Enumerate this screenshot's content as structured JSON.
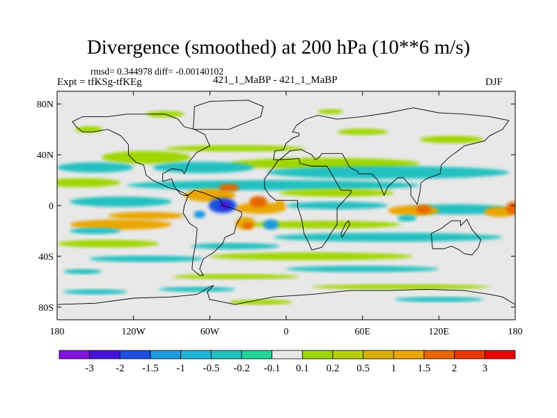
{
  "header": {
    "title": "Divergence (smoothed) at 200 hPa (10**6 m/s)",
    "stats": "rmsd= 0.344978 diff= -0.00140102",
    "experiment": "Expt = tfKSg-tfKEg",
    "run": "421_1_MaBP - 421_1_MaBP",
    "season": "DJF"
  },
  "map": {
    "projection": "cylindrical-equidistant",
    "lon_range": [
      -180,
      180
    ],
    "lat_range": [
      -90,
      90
    ],
    "background_color": "#e8e8e8",
    "lat_ticks": [
      {
        "value": 80,
        "label": "80N"
      },
      {
        "value": 40,
        "label": "40N"
      },
      {
        "value": 0,
        "label": "0"
      },
      {
        "value": -40,
        "label": "40S"
      },
      {
        "value": -80,
        "label": "80S"
      }
    ],
    "lon_ticks": [
      {
        "value": -180,
        "label": "180"
      },
      {
        "value": -120,
        "label": "120W"
      },
      {
        "value": -60,
        "label": "60W"
      },
      {
        "value": 0,
        "label": "0"
      },
      {
        "value": 60,
        "label": "60E"
      },
      {
        "value": 120,
        "label": "120E"
      },
      {
        "value": 180,
        "label": "180"
      }
    ],
    "bands": [
      {
        "lat": 72,
        "lon": -95,
        "w": 30,
        "h": 5,
        "color": "#9fd600"
      },
      {
        "lat": 74,
        "lon": 35,
        "w": 20,
        "h": 4,
        "color": "#9fd600"
      },
      {
        "lat": 60,
        "lon": -155,
        "w": 22,
        "h": 5,
        "color": "#9fd600"
      },
      {
        "lat": 58,
        "lon": 60,
        "w": 40,
        "h": 5,
        "color": "#9fd600"
      },
      {
        "lat": 52,
        "lon": 130,
        "w": 50,
        "h": 6,
        "color": "#9fd600"
      },
      {
        "lat": 45,
        "lon": -40,
        "w": 110,
        "h": 5,
        "color": "#9fd600"
      },
      {
        "lat": 38,
        "lon": -110,
        "w": 70,
        "h": 10,
        "color": "#9fd600"
      },
      {
        "lat": 33,
        "lon": 30,
        "w": 150,
        "h": 9,
        "color": "#9fd600"
      },
      {
        "lat": 30,
        "lon": -150,
        "w": 60,
        "h": 8,
        "color": "#22c0c0"
      },
      {
        "lat": 30,
        "lon": -65,
        "w": 80,
        "h": 9,
        "color": "#22c0c0"
      },
      {
        "lat": 26,
        "lon": 80,
        "w": 190,
        "h": 10,
        "color": "#22c0c0"
      },
      {
        "lat": 18,
        "lon": -160,
        "w": 60,
        "h": 7,
        "color": "#9fd600"
      },
      {
        "lat": 16,
        "lon": -10,
        "w": 230,
        "h": 8,
        "color": "#22c0c0"
      },
      {
        "lat": 8,
        "lon": -60,
        "w": 40,
        "h": 10,
        "color": "#eaa500"
      },
      {
        "lat": 10,
        "lon": 40,
        "w": 90,
        "h": 6,
        "color": "#9fd600"
      },
      {
        "lat": 3,
        "lon": -130,
        "w": 80,
        "h": 8,
        "color": "#22c0c0"
      },
      {
        "lat": 0,
        "lon": 40,
        "w": 80,
        "h": 6,
        "color": "#22c0c0"
      },
      {
        "lat": -3,
        "lon": 135,
        "w": 80,
        "h": 8,
        "color": "#22c0c0"
      },
      {
        "lat": -2,
        "lon": -20,
        "w": 40,
        "h": 9,
        "color": "#eaa500"
      },
      {
        "lat": -4,
        "lon": 100,
        "w": 40,
        "h": 8,
        "color": "#eaa500"
      },
      {
        "lat": -5,
        "lon": 168,
        "w": 25,
        "h": 8,
        "color": "#eaa500"
      },
      {
        "lat": -8,
        "lon": -110,
        "w": 60,
        "h": 6,
        "color": "#eaa500"
      },
      {
        "lat": -15,
        "lon": -130,
        "w": 80,
        "h": 8,
        "color": "#eaa500"
      },
      {
        "lat": -15,
        "lon": 30,
        "w": 120,
        "h": 6,
        "color": "#9fd600"
      },
      {
        "lat": -20,
        "lon": -150,
        "w": 40,
        "h": 5,
        "color": "#22c0c0"
      },
      {
        "lat": -25,
        "lon": 80,
        "w": 180,
        "h": 7,
        "color": "#22c0c0"
      },
      {
        "lat": -30,
        "lon": -140,
        "w": 80,
        "h": 6,
        "color": "#9fd600"
      },
      {
        "lat": -32,
        "lon": -40,
        "w": 70,
        "h": 5,
        "color": "#22c0c0"
      },
      {
        "lat": -40,
        "lon": 20,
        "w": 160,
        "h": 6,
        "color": "#9fd600"
      },
      {
        "lat": -42,
        "lon": -110,
        "w": 90,
        "h": 5,
        "color": "#22c0c0"
      },
      {
        "lat": -52,
        "lon": -160,
        "w": 30,
        "h": 4,
        "color": "#22c0c0"
      },
      {
        "lat": -50,
        "lon": 60,
        "w": 120,
        "h": 5,
        "color": "#22c0c0"
      },
      {
        "lat": -56,
        "lon": -40,
        "w": 100,
        "h": 4,
        "color": "#9fd600"
      },
      {
        "lat": -64,
        "lon": 90,
        "w": 140,
        "h": 4,
        "color": "#9fd600"
      },
      {
        "lat": -66,
        "lon": -70,
        "w": 60,
        "h": 4,
        "color": "#22c0c0"
      },
      {
        "lat": -68,
        "lon": -150,
        "w": 50,
        "h": 4,
        "color": "#22c0c0"
      },
      {
        "lat": -74,
        "lon": 120,
        "w": 70,
        "h": 4,
        "color": "#22c0c0"
      },
      {
        "lat": -76,
        "lon": -20,
        "w": 50,
        "h": 4,
        "color": "#9fd600"
      }
    ],
    "anomalies": [
      {
        "lat": 0,
        "lon": -50,
        "w": 22,
        "h": 12,
        "color": "#1d4fe0"
      },
      {
        "lat": 0,
        "lon": -48,
        "w": 9,
        "h": 6,
        "color": "#4412d8"
      },
      {
        "lat": 3,
        "lon": -22,
        "w": 14,
        "h": 9,
        "color": "#e86700"
      },
      {
        "lat": 1,
        "lon": -5,
        "w": 8,
        "h": 6,
        "color": "#eaa500"
      },
      {
        "lat": -14,
        "lon": -32,
        "w": 16,
        "h": 10,
        "color": "#eaa500"
      },
      {
        "lat": -16,
        "lon": -30,
        "w": 8,
        "h": 5,
        "color": "#e86700"
      },
      {
        "lat": -15,
        "lon": -12,
        "w": 12,
        "h": 8,
        "color": "#1d9ae0"
      },
      {
        "lat": 14,
        "lon": -45,
        "w": 16,
        "h": 6,
        "color": "#e86700"
      },
      {
        "lat": -7,
        "lon": -68,
        "w": 9,
        "h": 6,
        "color": "#1d9ae0"
      },
      {
        "lat": -3,
        "lon": 108,
        "w": 12,
        "h": 7,
        "color": "#e86700"
      },
      {
        "lat": -2,
        "lon": 178,
        "w": 10,
        "h": 10,
        "color": "#e86700"
      },
      {
        "lat": -10,
        "lon": 95,
        "w": 15,
        "h": 5,
        "color": "#22c0c0"
      }
    ],
    "coastlines": [
      [
        [
          -168,
          66
        ],
        [
          -160,
          70
        ],
        [
          -140,
          70
        ],
        [
          -125,
          72
        ],
        [
          -95,
          72
        ],
        [
          -85,
          68
        ],
        [
          -80,
          62
        ],
        [
          -72,
          60
        ],
        [
          -64,
          56
        ],
        [
          -60,
          47
        ],
        [
          -70,
          42
        ],
        [
          -76,
          35
        ],
        [
          -80,
          25
        ],
        [
          -82,
          28
        ],
        [
          -90,
          29
        ],
        [
          -97,
          25
        ],
        [
          -97,
          19
        ],
        [
          -90,
          21
        ],
        [
          -88,
          15
        ],
        [
          -83,
          9
        ],
        [
          -80,
          8
        ],
        [
          -77,
          8
        ],
        [
          -85,
          12
        ],
        [
          -92,
          14
        ],
        [
          -105,
          20
        ],
        [
          -110,
          24
        ],
        [
          -112,
          32
        ],
        [
          -118,
          34
        ],
        [
          -124,
          40
        ],
        [
          -124,
          48
        ],
        [
          -130,
          55
        ],
        [
          -140,
          60
        ],
        [
          -152,
          58
        ],
        [
          -160,
          58
        ],
        [
          -165,
          62
        ],
        [
          -168,
          66
        ]
      ],
      [
        [
          -77,
          8
        ],
        [
          -80,
          0
        ],
        [
          -81,
          -6
        ],
        [
          -76,
          -14
        ],
        [
          -70,
          -18
        ],
        [
          -71,
          -30
        ],
        [
          -73,
          -40
        ],
        [
          -74,
          -50
        ],
        [
          -68,
          -55
        ],
        [
          -65,
          -55
        ],
        [
          -68,
          -50
        ],
        [
          -65,
          -42
        ],
        [
          -57,
          -37
        ],
        [
          -50,
          -30
        ],
        [
          -48,
          -25
        ],
        [
          -41,
          -22
        ],
        [
          -39,
          -15
        ],
        [
          -35,
          -8
        ],
        [
          -35,
          -5
        ],
        [
          -40,
          -3
        ],
        [
          -50,
          0
        ],
        [
          -52,
          5
        ],
        [
          -60,
          8
        ],
        [
          -65,
          10
        ],
        [
          -72,
          12
        ],
        [
          -77,
          8
        ]
      ],
      [
        [
          -17,
          21
        ],
        [
          -10,
          30
        ],
        [
          -6,
          36
        ],
        [
          10,
          37
        ],
        [
          11,
          33
        ],
        [
          20,
          31
        ],
        [
          32,
          31
        ],
        [
          34,
          28
        ],
        [
          43,
          12
        ],
        [
          51,
          12
        ],
        [
          51,
          10
        ],
        [
          40,
          -2
        ],
        [
          40,
          -15
        ],
        [
          35,
          -22
        ],
        [
          33,
          -26
        ],
        [
          28,
          -33
        ],
        [
          20,
          -35
        ],
        [
          18,
          -30
        ],
        [
          14,
          -22
        ],
        [
          12,
          -10
        ],
        [
          9,
          -1
        ],
        [
          9,
          4
        ],
        [
          5,
          4
        ],
        [
          -8,
          4
        ],
        [
          -13,
          8
        ],
        [
          -17,
          14
        ],
        [
          -17,
          21
        ]
      ],
      [
        [
          -10,
          36
        ],
        [
          -9,
          43
        ],
        [
          -2,
          44
        ],
        [
          0,
          49
        ],
        [
          5,
          53
        ],
        [
          10,
          55
        ],
        [
          10,
          57
        ],
        [
          5,
          58
        ],
        [
          8,
          63
        ],
        [
          15,
          68
        ],
        [
          25,
          71
        ],
        [
          40,
          68
        ],
        [
          60,
          70
        ],
        [
          80,
          73
        ],
        [
          100,
          77
        ],
        [
          120,
          73
        ],
        [
          140,
          72
        ],
        [
          160,
          70
        ],
        [
          175,
          67
        ],
        [
          170,
          60
        ],
        [
          160,
          55
        ],
        [
          156,
          51
        ],
        [
          140,
          47
        ],
        [
          135,
          43
        ],
        [
          128,
          38
        ],
        [
          122,
          32
        ],
        [
          121,
          25
        ],
        [
          110,
          21
        ],
        [
          106,
          18
        ],
        [
          105,
          10
        ],
        [
          103,
          1
        ],
        [
          98,
          8
        ],
        [
          98,
          15
        ],
        [
          92,
          22
        ],
        [
          88,
          22
        ],
        [
          80,
          15
        ],
        [
          77,
          8
        ],
        [
          72,
          20
        ],
        [
          67,
          25
        ],
        [
          57,
          25
        ],
        [
          56,
          27
        ],
        [
          50,
          30
        ],
        [
          44,
          41
        ],
        [
          28,
          41
        ],
        [
          26,
          38
        ],
        [
          23,
          36
        ],
        [
          20,
          40
        ],
        [
          12,
          44
        ],
        [
          10,
          44
        ],
        [
          3,
          43
        ],
        [
          -5,
          36
        ],
        [
          -10,
          36
        ]
      ],
      [
        [
          114,
          -22
        ],
        [
          122,
          -18
        ],
        [
          130,
          -12
        ],
        [
          137,
          -12
        ],
        [
          137,
          -16
        ],
        [
          142,
          -11
        ],
        [
          146,
          -19
        ],
        [
          153,
          -27
        ],
        [
          151,
          -33
        ],
        [
          146,
          -39
        ],
        [
          140,
          -38
        ],
        [
          136,
          -35
        ],
        [
          130,
          -32
        ],
        [
          124,
          -34
        ],
        [
          115,
          -34
        ],
        [
          114,
          -22
        ]
      ],
      [
        [
          44,
          -25
        ],
        [
          50,
          -15
        ],
        [
          49,
          -12
        ],
        [
          47,
          -14
        ],
        [
          43,
          -22
        ],
        [
          44,
          -25
        ]
      ],
      [
        [
          -73,
          60
        ],
        [
          -45,
          60
        ],
        [
          -20,
          70
        ],
        [
          -18,
          78
        ],
        [
          -30,
          83
        ],
        [
          -60,
          82
        ],
        [
          -72,
          78
        ],
        [
          -73,
          60
        ]
      ],
      [
        [
          -180,
          -78
        ],
        [
          -150,
          -77
        ],
        [
          -120,
          -73
        ],
        [
          -90,
          -72
        ],
        [
          -70,
          -70
        ],
        [
          -60,
          -64
        ],
        [
          -57,
          -63
        ],
        [
          -62,
          -68
        ],
        [
          -60,
          -74
        ],
        [
          -40,
          -78
        ],
        [
          -10,
          -72
        ],
        [
          20,
          -70
        ],
        [
          50,
          -67
        ],
        [
          80,
          -67
        ],
        [
          110,
          -66
        ],
        [
          140,
          -67
        ],
        [
          160,
          -70
        ],
        [
          170,
          -72
        ],
        [
          180,
          -78
        ]
      ]
    ]
  },
  "colorbar": {
    "colors": [
      "#8312e0",
      "#4412d8",
      "#1d4fe0",
      "#1d9ae0",
      "#22b4d4",
      "#22c0c0",
      "#22d49a",
      "#e8e8e8",
      "#9fd600",
      "#b8d000",
      "#d8b000",
      "#eaa500",
      "#e86700",
      "#e83a00",
      "#e80000"
    ],
    "labels": [
      "-3",
      "-2",
      "-1.5",
      "-1",
      "-0.5",
      "-0.2",
      "-0.1",
      "0.1",
      "0.2",
      "0.5",
      "1",
      "1.5",
      "2",
      "3"
    ]
  }
}
